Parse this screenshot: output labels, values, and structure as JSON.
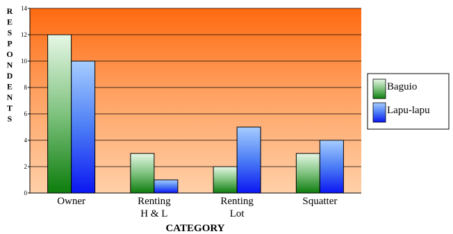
{
  "chart_data": {
    "type": "bar",
    "categories": [
      "Owner",
      "Renting H & L",
      "Renting Lot",
      "Squatter"
    ],
    "series": [
      {
        "name": "Baguio",
        "values": [
          12,
          3,
          2,
          3
        ],
        "color": "#2e8b2e"
      },
      {
        "name": "Lapu-lapu",
        "values": [
          10,
          1,
          5,
          4
        ],
        "color": "#1a2cf0"
      }
    ],
    "xlabel": "CATEGORY",
    "ylabel": "RESPONDENTS",
    "ylim": [
      0,
      14
    ],
    "yticks": [
      "0",
      "2",
      "4",
      "6",
      "8",
      "10",
      "12",
      "14"
    ],
    "grid": true,
    "legend": "right",
    "plot_background": [
      "#ff6a10",
      "#ffd0a8"
    ]
  }
}
